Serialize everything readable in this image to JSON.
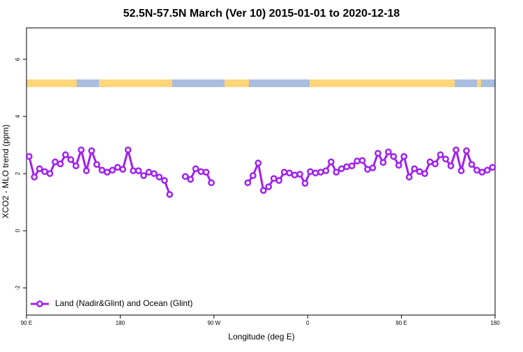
{
  "chart_data": {
    "type": "line",
    "title": "52.5N-57.5N March (Ver 10)   2015-01-01 to 2020-12-18",
    "x_label": "Longitude (deg E)",
    "y_label": "XCO2 - MLO trend (ppm)",
    "x": [
      92.5,
      97.5,
      102.5,
      107.5,
      112.5,
      117.5,
      122.5,
      127.5,
      132.5,
      137.5,
      142.5,
      147.5,
      152.5,
      157.5,
      162.5,
      167.5,
      172.5,
      177.5,
      182.5,
      187.5,
      192.5,
      197.5,
      202.5,
      207.5,
      212.5,
      217.5,
      222.5,
      227.5,
      232.5,
      237.5,
      242.5,
      247.5,
      252.5,
      257.5,
      262.5,
      267.5,
      272.5,
      277.5,
      282.5,
      287.5,
      292.5,
      297.5,
      302.5,
      307.5,
      312.5,
      317.5,
      322.5,
      327.5,
      332.5,
      337.5,
      342.5,
      347.5,
      352.5,
      357.5,
      362.5,
      367.5,
      372.5,
      377.5,
      382.5,
      387.5,
      392.5,
      397.5,
      402.5,
      407.5,
      412.5,
      417.5,
      422.5,
      427.5,
      432.5,
      437.5,
      442.5,
      447.5,
      452.5,
      457.5,
      462.5,
      467.5,
      472.5,
      477.5,
      482.5,
      487.5,
      492.5,
      497.5,
      502.5,
      507.5,
      512.5,
      517.5,
      522.5,
      527.5,
      532.5,
      537.5
    ],
    "series": [
      {
        "name": "Land (Nadir&Glint) and Ocean (Glint)",
        "color": "#a020f0",
        "values": [
          2.6,
          1.88,
          2.17,
          2.07,
          2.0,
          2.41,
          2.34,
          2.66,
          2.49,
          2.27,
          2.83,
          2.1,
          2.8,
          2.32,
          2.12,
          2.05,
          2.12,
          2.22,
          2.15,
          2.83,
          2.1,
          2.1,
          1.93,
          2.05,
          2.0,
          1.88,
          1.76,
          1.27,
          null,
          null,
          1.9,
          1.8,
          2.17,
          2.07,
          2.05,
          1.68,
          null,
          null,
          null,
          null,
          null,
          null,
          1.68,
          1.93,
          2.37,
          1.41,
          1.54,
          1.83,
          1.76,
          2.05,
          2.02,
          1.95,
          1.98,
          1.66,
          2.07,
          2.02,
          2.05,
          2.1,
          2.41,
          2.05,
          2.17,
          2.24,
          2.27,
          2.44,
          2.46,
          2.15,
          2.2,
          2.71,
          2.39,
          2.76,
          2.6,
          2.29,
          2.6,
          1.88,
          2.17,
          2.07,
          2.0,
          2.41,
          2.34,
          2.66,
          2.51,
          2.27,
          2.83,
          2.1,
          2.8,
          2.32,
          2.12,
          2.05,
          2.12,
          2.22
        ]
      }
    ],
    "xlim": [
      90,
      540
    ],
    "xticks": [
      {
        "value": 90,
        "label": "90 E"
      },
      180,
      {
        "value": 270,
        "label": "90 W"
      },
      {
        "value": 360,
        "label": "0"
      },
      {
        "value": 450,
        "label": "90 E"
      },
      {
        "value": 540,
        "label": "180"
      }
    ],
    "ylim": [
      -2.95,
      7.1
    ],
    "yticks": [
      -2,
      0,
      2,
      4,
      6
    ],
    "legend": "bottom-left"
  }
}
